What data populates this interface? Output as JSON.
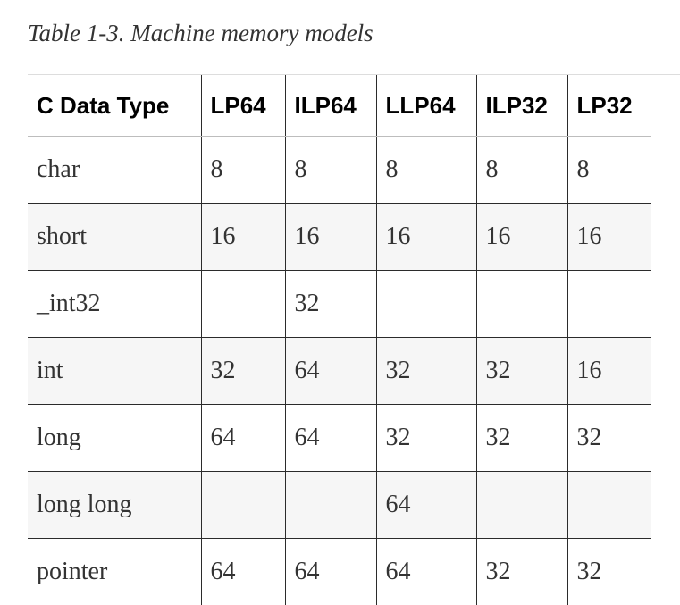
{
  "caption": "Table 1-3. Machine memory models",
  "table": {
    "headers": [
      "C Data Type",
      "LP64",
      "ILP64",
      "LLP64",
      "ILP32",
      "LP32"
    ],
    "rows": [
      [
        "char",
        "8",
        "8",
        "8",
        "8",
        "8"
      ],
      [
        "short",
        "16",
        "16",
        "16",
        "16",
        "16"
      ],
      [
        "_int32",
        "",
        "32",
        "",
        "",
        ""
      ],
      [
        "int",
        "32",
        "64",
        "32",
        "32",
        "16"
      ],
      [
        "long",
        "64",
        "64",
        "32",
        "32",
        "32"
      ],
      [
        "long long",
        "",
        "",
        "64",
        "",
        ""
      ],
      [
        "pointer",
        "64",
        "64",
        "64",
        "32",
        "32"
      ]
    ]
  }
}
